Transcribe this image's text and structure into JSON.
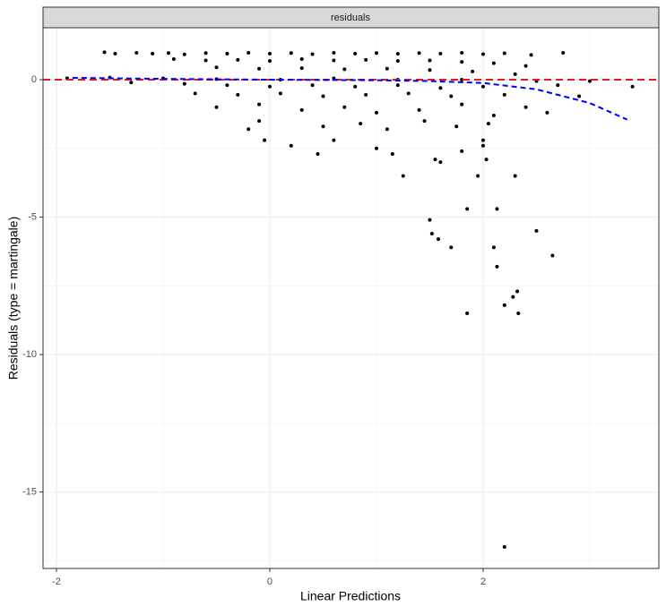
{
  "chart_data": {
    "type": "scatter",
    "strip": "residuals",
    "x_label": "Linear Predictions",
    "y_label": "Residuals (type = martingale)",
    "xlim": [
      -2.126,
      3.647
    ],
    "ylim": [
      -17.78,
      1.89
    ],
    "xticks": [
      -2,
      0,
      2
    ],
    "yticks": [
      0,
      -5,
      -10,
      -15
    ],
    "xminor": [
      -1,
      1,
      3
    ],
    "yminor": [
      -2.5,
      -7.5,
      -12.5,
      -17.5
    ],
    "grid": true,
    "hline": {
      "value": 0,
      "color": "#e41a1c"
    },
    "series": [
      {
        "name": "points",
        "color": "#000000",
        "x": [
          -1.55,
          -1.45,
          -1.25,
          -1.1,
          -0.95,
          -0.8,
          -0.6,
          -0.4,
          -0.2,
          0,
          0.2,
          0.4,
          0.6,
          0.8,
          1.0,
          1.2,
          1.4,
          1.6,
          1.8,
          2.0,
          2.2,
          2.45,
          2.75,
          -0.9,
          -0.6,
          -0.3,
          0,
          0.3,
          0.6,
          0.9,
          1.2,
          1.5,
          1.8,
          2.1,
          2.4,
          -0.5,
          -0.1,
          0.3,
          0.7,
          1.1,
          1.5,
          1.9,
          2.3,
          -1.9,
          -1.5,
          -1.0,
          -0.5,
          0.1,
          0.6,
          1.2,
          1.8,
          2.5,
          -1.3,
          -0.8,
          -0.4,
          0,
          0.4,
          0.8,
          1.2,
          1.6,
          2.0,
          2.7,
          -0.7,
          -0.3,
          0.1,
          0.5,
          0.9,
          1.3,
          1.7,
          2.2,
          -0.5,
          -0.1,
          0.3,
          0.7,
          1.0,
          1.4,
          1.8,
          2.1,
          -0.1,
          0.5,
          0.85,
          1.1,
          1.45,
          1.75,
          2.05,
          0.6,
          1.0,
          1.15,
          1.55,
          1.8,
          2.0,
          1.5,
          1.52,
          1.58,
          1.7,
          1.85,
          1.85,
          2.1,
          2.13,
          2.13,
          2.2,
          2.28,
          2.32,
          2.33,
          2.2,
          2.3,
          2.65,
          2.5,
          2.03,
          1.95,
          2.0,
          1.25,
          1.6,
          0.2,
          0.45,
          -0.05,
          -0.2,
          3.4,
          3.0,
          2.9,
          2.6,
          2.4
        ],
        "values": [
          1.0,
          0.95,
          0.98,
          0.95,
          0.97,
          0.92,
          0.97,
          0.95,
          0.98,
          0.95,
          0.97,
          0.93,
          0.98,
          0.95,
          0.97,
          0.94,
          0.97,
          0.95,
          0.98,
          0.93,
          0.96,
          0.9,
          0.98,
          0.75,
          0.7,
          0.72,
          0.68,
          0.75,
          0.7,
          0.72,
          0.68,
          0.7,
          0.65,
          0.6,
          0.5,
          0.45,
          0.4,
          0.42,
          0.38,
          0.4,
          0.35,
          0.3,
          0.2,
          0.05,
          0.08,
          0.05,
          0.02,
          0.0,
          0.05,
          0.0,
          0.0,
          -0.05,
          -0.1,
          -0.15,
          -0.2,
          -0.25,
          -0.2,
          -0.25,
          -0.2,
          -0.3,
          -0.25,
          -0.2,
          -0.5,
          -0.55,
          -0.5,
          -0.6,
          -0.55,
          -0.5,
          -0.6,
          -0.55,
          -1.0,
          -0.9,
          -1.1,
          -1.0,
          -1.2,
          -1.1,
          -0.9,
          -1.3,
          -1.5,
          -1.7,
          -1.6,
          -1.8,
          -1.5,
          -1.7,
          -1.6,
          -2.2,
          -2.5,
          -2.7,
          -2.9,
          -2.6,
          -2.2,
          -5.1,
          -5.6,
          -5.8,
          -6.1,
          -4.7,
          -8.5,
          -6.1,
          -6.8,
          -4.7,
          -8.2,
          -7.9,
          -7.7,
          -8.5,
          -17.0,
          -3.5,
          -6.4,
          -5.5,
          -2.9,
          -3.5,
          -2.4,
          -3.5,
          -3.0,
          -2.4,
          -2.7,
          -2.2,
          -1.8,
          -0.25,
          -0.05,
          -0.6,
          -1.2,
          -1.0
        ]
      },
      {
        "name": "smooth",
        "color": "#0000ff",
        "x": [
          -1.85,
          -1.0,
          0,
          1.0,
          1.5,
          2.0,
          2.5,
          3.0,
          3.35
        ],
        "values": [
          0.07,
          0.03,
          0.0,
          -0.02,
          -0.05,
          -0.12,
          -0.35,
          -0.85,
          -1.45
        ]
      }
    ]
  }
}
